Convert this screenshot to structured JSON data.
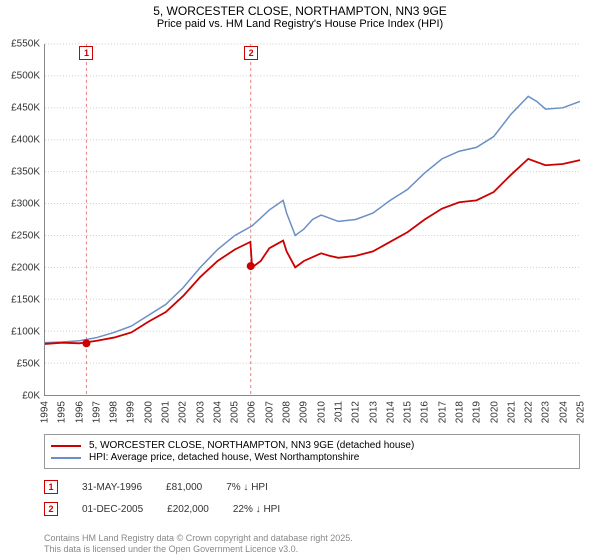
{
  "title": "5, WORCESTER CLOSE, NORTHAMPTON, NN3 9GE",
  "subtitle": "Price paid vs. HM Land Registry's House Price Index (HPI)",
  "chart": {
    "type": "line",
    "xlim": [
      1994,
      2025
    ],
    "ylim": [
      0,
      550000
    ],
    "ytick_step": 50000,
    "ytick_prefix": "£",
    "ytick_suffix": "K",
    "xticks": [
      1994,
      1995,
      1996,
      1997,
      1998,
      1999,
      2000,
      2001,
      2002,
      2003,
      2004,
      2005,
      2006,
      2007,
      2008,
      2009,
      2010,
      2011,
      2012,
      2013,
      2014,
      2015,
      2016,
      2017,
      2018,
      2019,
      2020,
      2021,
      2022,
      2023,
      2024,
      2025
    ],
    "background_color": "#ffffff",
    "grid_color": "#cccccc",
    "axis_color": "#888888",
    "label_fontsize": 10,
    "series": {
      "price": {
        "color": "#cc0000",
        "width": 1.8,
        "points": [
          [
            1994,
            80000
          ],
          [
            1995,
            82000
          ],
          [
            1996,
            81000
          ],
          [
            1997,
            85000
          ],
          [
            1998,
            90000
          ],
          [
            1999,
            98000
          ],
          [
            2000,
            115000
          ],
          [
            2001,
            130000
          ],
          [
            2002,
            155000
          ],
          [
            2003,
            185000
          ],
          [
            2004,
            210000
          ],
          [
            2005,
            228000
          ],
          [
            2005.9,
            240000
          ],
          [
            2006,
            200000
          ],
          [
            2006.5,
            210000
          ],
          [
            2007,
            230000
          ],
          [
            2007.8,
            242000
          ],
          [
            2008,
            225000
          ],
          [
            2008.5,
            200000
          ],
          [
            2009,
            210000
          ],
          [
            2010,
            222000
          ],
          [
            2010.5,
            218000
          ],
          [
            2011,
            215000
          ],
          [
            2012,
            218000
          ],
          [
            2013,
            225000
          ],
          [
            2014,
            240000
          ],
          [
            2015,
            255000
          ],
          [
            2016,
            275000
          ],
          [
            2017,
            292000
          ],
          [
            2018,
            302000
          ],
          [
            2019,
            305000
          ],
          [
            2020,
            318000
          ],
          [
            2021,
            345000
          ],
          [
            2022,
            370000
          ],
          [
            2022.5,
            365000
          ],
          [
            2023,
            360000
          ],
          [
            2024,
            362000
          ],
          [
            2025,
            368000
          ]
        ]
      },
      "hpi": {
        "color": "#6a8fc4",
        "width": 1.5,
        "points": [
          [
            1994,
            82000
          ],
          [
            1995,
            83000
          ],
          [
            1996,
            85000
          ],
          [
            1997,
            90000
          ],
          [
            1998,
            98000
          ],
          [
            1999,
            108000
          ],
          [
            2000,
            125000
          ],
          [
            2001,
            142000
          ],
          [
            2002,
            168000
          ],
          [
            2003,
            200000
          ],
          [
            2004,
            228000
          ],
          [
            2005,
            250000
          ],
          [
            2006,
            265000
          ],
          [
            2007,
            290000
          ],
          [
            2007.8,
            305000
          ],
          [
            2008,
            285000
          ],
          [
            2008.5,
            250000
          ],
          [
            2009,
            260000
          ],
          [
            2009.5,
            275000
          ],
          [
            2010,
            282000
          ],
          [
            2011,
            272000
          ],
          [
            2012,
            275000
          ],
          [
            2013,
            285000
          ],
          [
            2014,
            305000
          ],
          [
            2015,
            322000
          ],
          [
            2016,
            348000
          ],
          [
            2017,
            370000
          ],
          [
            2018,
            382000
          ],
          [
            2019,
            388000
          ],
          [
            2020,
            405000
          ],
          [
            2021,
            440000
          ],
          [
            2022,
            468000
          ],
          [
            2022.5,
            460000
          ],
          [
            2023,
            448000
          ],
          [
            2024,
            450000
          ],
          [
            2025,
            460000
          ]
        ]
      }
    },
    "markers": [
      {
        "n": "1",
        "x": 1996.4,
        "y": 81000
      },
      {
        "n": "2",
        "x": 2005.92,
        "y": 202000
      }
    ]
  },
  "legend": {
    "price": "5, WORCESTER CLOSE, NORTHAMPTON, NN3 9GE (detached house)",
    "hpi": "HPI: Average price, detached house, West Northamptonshire"
  },
  "sales": [
    {
      "n": "1",
      "date": "31-MAY-1996",
      "price": "£81,000",
      "delta": "7% ↓ HPI"
    },
    {
      "n": "2",
      "date": "01-DEC-2005",
      "price": "£202,000",
      "delta": "22% ↓ HPI"
    }
  ],
  "attribution": {
    "line1": "Contains HM Land Registry data © Crown copyright and database right 2025.",
    "line2": "This data is licensed under the Open Government Licence v3.0."
  }
}
